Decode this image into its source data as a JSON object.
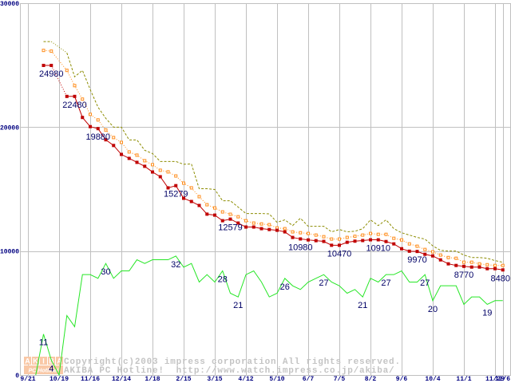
{
  "chart_data": {
    "type": "line",
    "title": "",
    "xlabel": "",
    "ylabel": "",
    "ylim": [
      0,
      30000
    ],
    "y2lim": [
      0,
      100
    ],
    "grid": true,
    "legend": "none",
    "y_ticks": [
      {
        "value": 30000,
        "label": "30000"
      },
      {
        "value": 20000,
        "label": "20000"
      },
      {
        "value": 10000,
        "label": "10000"
      },
      {
        "value": 0,
        "label": "0"
      }
    ],
    "x_ticks": [
      {
        "i": 0,
        "label": "9/21"
      },
      {
        "i": 4,
        "label": "10/19"
      },
      {
        "i": 8,
        "label": "11/16"
      },
      {
        "i": 12,
        "label": "12/14"
      },
      {
        "i": 16,
        "label": "1/18"
      },
      {
        "i": 20,
        "label": "2/15"
      },
      {
        "i": 24,
        "label": "3/15"
      },
      {
        "i": 28,
        "label": "4/12"
      },
      {
        "i": 32,
        "label": "5/10"
      },
      {
        "i": 36,
        "label": "6/7"
      },
      {
        "i": 40,
        "label": "7/5"
      },
      {
        "i": 44,
        "label": "8/2"
      },
      {
        "i": 48,
        "label": "9/6"
      },
      {
        "i": 52,
        "label": "10/4"
      },
      {
        "i": 56,
        "label": "11/1"
      },
      {
        "i": 60,
        "label": "11/29"
      },
      {
        "i": 61,
        "label": "12/6"
      }
    ],
    "series": [
      {
        "color": "#8c8c00",
        "secondary_axis": false,
        "values": [
          null,
          null,
          26900,
          26900,
          null,
          26000,
          24060,
          24580,
          23030,
          21610,
          20710,
          20000,
          20000,
          18970,
          18970,
          18130,
          17870,
          17230,
          17230,
          17230,
          17000,
          17030,
          15030,
          15030,
          14970,
          14060,
          14060,
          13550,
          13030,
          13030,
          13030,
          13000,
          12320,
          12520,
          12060,
          12650,
          12000,
          12000,
          12000,
          11550,
          11740,
          11550,
          11600,
          11800,
          12520,
          12060,
          12520,
          11810,
          11480,
          11290,
          11100,
          10970,
          10420,
          10060,
          10000,
          10000,
          9680,
          9480,
          9480,
          9420,
          9230,
          9100
        ]
      },
      {
        "color": "#ff8c1a",
        "secondary_axis": false,
        "values": [
          null,
          null,
          26190,
          26130,
          null,
          24580,
          23350,
          22260,
          21030,
          20580,
          19770,
          19160,
          18770,
          18000,
          17740,
          17290,
          16970,
          16520,
          16390,
          16060,
          15480,
          15100,
          14390,
          13740,
          13480,
          13160,
          12970,
          12770,
          12450,
          12260,
          12190,
          12130,
          11870,
          11810,
          11550,
          11480,
          11420,
          11290,
          11160,
          10970,
          10970,
          11100,
          11190,
          11290,
          11420,
          11350,
          11350,
          11030,
          10900,
          10580,
          10390,
          10130,
          9940,
          9680,
          9480,
          9420,
          9100,
          9100,
          8970,
          8900,
          8840,
          8840
        ]
      },
      {
        "color": "#c00000",
        "secondary_axis": false,
        "values": [
          null,
          null,
          24980,
          24980,
          null,
          22480,
          22480,
          20780,
          20040,
          19880,
          18980,
          18520,
          17800,
          17480,
          17160,
          16840,
          16380,
          16000,
          15100,
          15279,
          14260,
          14000,
          13680,
          12980,
          12900,
          12450,
          12579,
          12260,
          11940,
          11940,
          11810,
          11740,
          11680,
          11550,
          11100,
          10980,
          10900,
          10840,
          10780,
          10470,
          10470,
          10710,
          10800,
          10850,
          10910,
          10910,
          10770,
          10580,
          10190,
          9990,
          9970,
          9740,
          9610,
          9290,
          8970,
          8840,
          8770,
          8710,
          8710,
          8580,
          8580,
          8480
        ]
      },
      {
        "color": "#26e626",
        "secondary_axis": true,
        "values": [
          null,
          0,
          11,
          4,
          0,
          16,
          13,
          27,
          27,
          26,
          30,
          26,
          28,
          28,
          31,
          30,
          31,
          31,
          31,
          32,
          29,
          30,
          25,
          27,
          25,
          28,
          22,
          21,
          27,
          28,
          25,
          21,
          22,
          26,
          24,
          23,
          25,
          26,
          27,
          25,
          24,
          22,
          23,
          21,
          26,
          25,
          27,
          27,
          28,
          25,
          25,
          27,
          20,
          24,
          24,
          24,
          19,
          21,
          21,
          19,
          20,
          20
        ]
      }
    ],
    "data_labels": [
      {
        "series": 2,
        "i": 3,
        "text": "24980"
      },
      {
        "series": 2,
        "i": 6,
        "text": "22480"
      },
      {
        "series": 2,
        "i": 9,
        "text": "19880"
      },
      {
        "series": 2,
        "i": 19,
        "text": "15279"
      },
      {
        "series": 2,
        "i": 26,
        "text": "12579"
      },
      {
        "series": 2,
        "i": 35,
        "text": "10980"
      },
      {
        "series": 2,
        "i": 40,
        "text": "10470"
      },
      {
        "series": 2,
        "i": 45,
        "text": "10910"
      },
      {
        "series": 2,
        "i": 50,
        "text": "9970"
      },
      {
        "series": 2,
        "i": 56,
        "text": "8770"
      },
      {
        "series": 2,
        "i": 61,
        "text": "8480"
      },
      {
        "series": 3,
        "i": 2,
        "text": "11"
      },
      {
        "series": 3,
        "i": 3,
        "text": "4"
      },
      {
        "series": 3,
        "i": 10,
        "text": "30"
      },
      {
        "series": 3,
        "i": 19,
        "text": "32"
      },
      {
        "series": 3,
        "i": 25,
        "text": "28"
      },
      {
        "series": 3,
        "i": 27,
        "text": "21"
      },
      {
        "series": 3,
        "i": 33,
        "text": "26"
      },
      {
        "series": 3,
        "i": 38,
        "text": "27"
      },
      {
        "series": 3,
        "i": 43,
        "text": "21"
      },
      {
        "series": 3,
        "i": 46,
        "text": "27"
      },
      {
        "series": 3,
        "i": 51,
        "text": "27"
      },
      {
        "series": 3,
        "i": 52,
        "text": "20"
      },
      {
        "series": 3,
        "i": 59,
        "text": "19"
      }
    ]
  },
  "watermark": {
    "logo_top": [
      "A",
      "K",
      "I",
      "B",
      "A"
    ],
    "logo_bottom": "PC Hotline!",
    "copyright_line1": "Copyright(c)2003 impress corporation All rights reserved.",
    "copyright_line2": "AKIBA PC Hotline!  http://www.watch.impress.co.jp/akiba/",
    "logo_color": "#f9c8a6"
  }
}
